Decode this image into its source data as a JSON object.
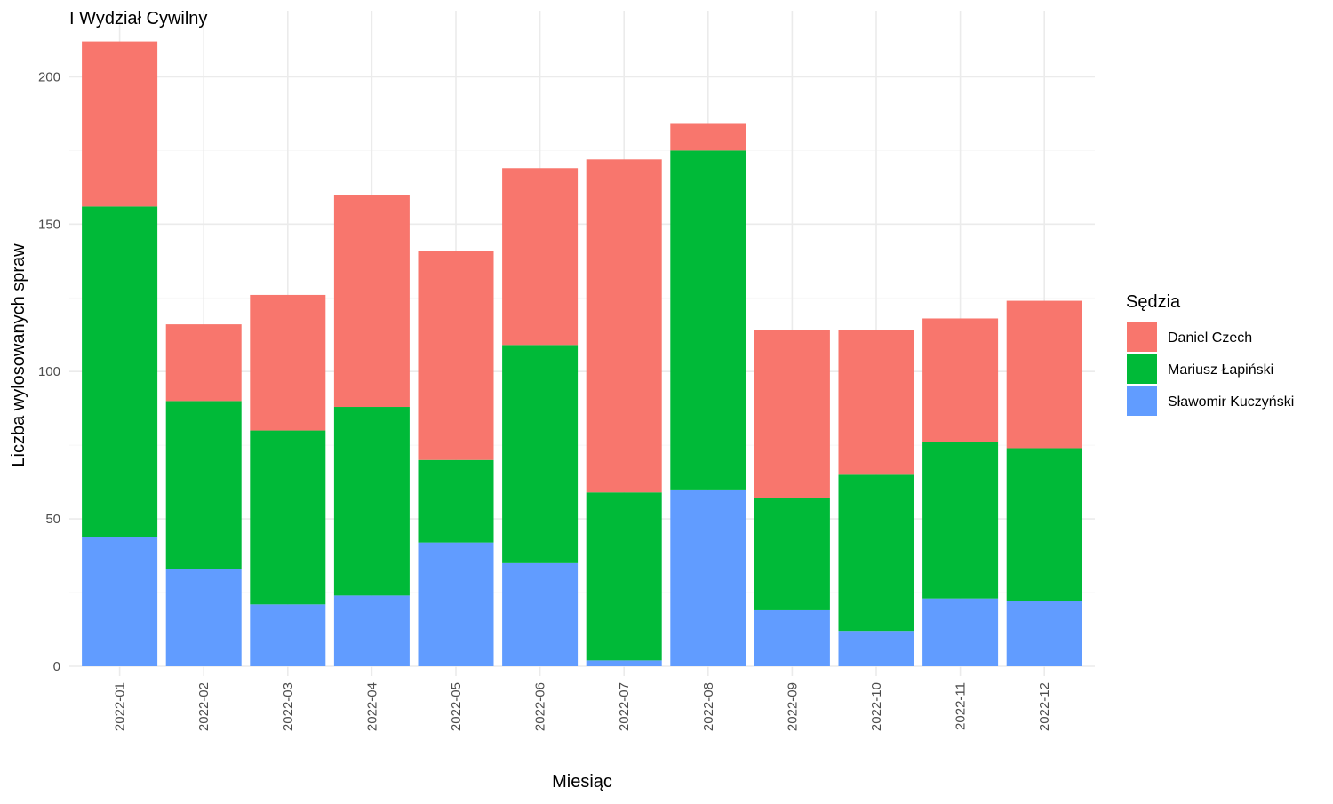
{
  "chart_data": {
    "type": "bar",
    "stacked": true,
    "title": "I Wydział Cywilny",
    "xlabel": "Miesiąc",
    "ylabel": "Liczba wylosowanych spraw",
    "ylim": [
      0,
      215
    ],
    "yticks": [
      0,
      50,
      100,
      150,
      200
    ],
    "grid": true,
    "legend": {
      "title": "Sędzia",
      "placement": "right"
    },
    "categories": [
      "2022-01",
      "2022-02",
      "2022-03",
      "2022-04",
      "2022-05",
      "2022-06",
      "2022-07",
      "2022-08",
      "2022-09",
      "2022-10",
      "2022-11",
      "2022-12"
    ],
    "series": [
      {
        "name": "Sławomir Kuczyński",
        "color": "#619CFF",
        "values": [
          44,
          33,
          21,
          24,
          42,
          35,
          2,
          60,
          19,
          12,
          23,
          22
        ]
      },
      {
        "name": "Mariusz Łapiński",
        "color": "#00BA38",
        "values": [
          112,
          57,
          59,
          64,
          28,
          74,
          57,
          115,
          38,
          53,
          53,
          52
        ]
      },
      {
        "name": "Daniel Czech",
        "color": "#F8766D",
        "values": [
          56,
          26,
          46,
          72,
          71,
          60,
          113,
          9,
          57,
          49,
          42,
          50
        ]
      }
    ],
    "legend_order": [
      "Daniel Czech",
      "Mariusz Łapiński",
      "Sławomir Kuczyński"
    ]
  }
}
